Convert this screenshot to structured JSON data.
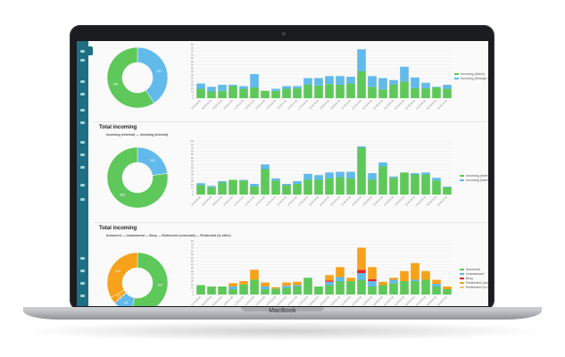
{
  "device": {
    "brand_label": "MacBook"
  },
  "sections": [
    {
      "title": "",
      "filter_line": "",
      "donut": {
        "labels": [
          "237",
          "345"
        ],
        "values": [
          237,
          345
        ],
        "colors": [
          "#62baea",
          "#5ec85a"
        ]
      },
      "chart": {
        "type": "bar",
        "ylim": [
          0,
          80
        ],
        "yticks": [
          "80",
          "75",
          "70",
          "65",
          "60",
          "55",
          "50",
          "45",
          "40",
          "35",
          "30",
          "25",
          "20",
          "15",
          "10",
          "5",
          "0"
        ],
        "categories": [
          "07:00-08:00",
          "08:00-09:00",
          "09:00-10:00",
          "10:00-11:00",
          "11:00-12:00",
          "12:00-13:00",
          "13:00-14:00",
          "14:00-15:00",
          "15:00-16:00",
          "16:00-17:00",
          "17:00-18:00",
          "18:00-19:00",
          "19:00-20:00",
          "20:00-21:00",
          "21:00-22:00",
          "22:00-23:00",
          "23:00-00:00",
          "00:00-01:00",
          "01:00-02:00",
          "02:00-03:00",
          "03:00-04:00",
          "04:00-05:00",
          "05:00-06:00",
          "06:00-07:00"
        ],
        "series": [
          {
            "name": "Incoming (direct)",
            "color": "#5ec85a",
            "values": [
              14,
              10,
              11,
              18,
              14,
              16,
              11,
              11,
              14,
              15,
              20,
              19,
              21,
              20,
              22,
              40,
              17,
              13,
              20,
              25,
              15,
              15,
              16,
              14
            ]
          },
          {
            "name": "Incoming (through other)",
            "color": "#62baea",
            "values": [
              8,
              7,
              9,
              2,
              4,
              20,
              0,
              3,
              4,
              3,
              10,
              11,
              12,
              13,
              10,
              33,
              16,
              17,
              7,
              22,
              16,
              8,
              1,
              6
            ]
          }
        ],
        "legend": [
          "Incoming (direct)",
          "Incoming (through other)"
        ]
      }
    },
    {
      "title": "Total incoming",
      "filter_line": "Incoming (external) — Incoming (internal)",
      "donut": {
        "labels": [
          "113",
          "383"
        ],
        "values": [
          113,
          383
        ],
        "colors": [
          "#62baea",
          "#5ec85a"
        ]
      },
      "chart": {
        "type": "bar",
        "ylim": [
          0,
          80
        ],
        "yticks": [
          "80",
          "75",
          "70",
          "65",
          "60",
          "55",
          "50",
          "45",
          "40",
          "35",
          "30",
          "25",
          "20",
          "15",
          "10",
          "5",
          "0"
        ],
        "categories": [
          "07:00-08:00",
          "08:00-09:00",
          "09:00-10:00",
          "10:00-11:00",
          "11:00-12:00",
          "12:00-13:00",
          "13:00-14:00",
          "14:00-15:00",
          "15:00-16:00",
          "16:00-17:00",
          "17:00-18:00",
          "18:00-19:00",
          "19:00-20:00",
          "20:00-21:00",
          "21:00-22:00",
          "22:00-23:00",
          "23:00-00:00",
          "00:00-01:00",
          "01:00-02:00",
          "02:00-03:00",
          "03:00-04:00",
          "04:00-05:00",
          "05:00-06:00",
          "06:00-07:00"
        ],
        "series": [
          {
            "name": "Incoming (external)",
            "color": "#5ec85a",
            "values": [
              14,
              11,
              18,
              22,
              21,
              12,
              38,
              21,
              14,
              16,
              22,
              22,
              24,
              26,
              24,
              70,
              22,
              42,
              25,
              33,
              30,
              30,
              21,
              11
            ]
          },
          {
            "name": "Incoming (internal)",
            "color": "#62baea",
            "values": [
              3,
              2,
              2,
              0,
              1,
              4,
              7,
              3,
              2,
              4,
              9,
              7,
              9,
              8,
              10,
              2,
              10,
              6,
              2,
              0,
              2,
              3,
              4,
              1
            ]
          }
        ],
        "legend": [
          "Incoming (external)",
          "Incoming (internal)"
        ]
      }
    },
    {
      "title": "Total incoming",
      "filter_line": "Answered — Unanswered — Busy — Redirected (voicemail) — Redirected (to other)",
      "donut": {
        "labels": [
          "437",
          "84",
          "3",
          "27",
          "271"
        ],
        "values": [
          437,
          84,
          3,
          27,
          271
        ],
        "colors": [
          "#5ec85a",
          "#62baea",
          "#e8242c",
          "#f7a21b",
          "#f7a21b"
        ]
      },
      "chart": {
        "type": "bar",
        "ylim": [
          0,
          80
        ],
        "yticks": [
          "80",
          "75",
          "70",
          "65",
          "60",
          "55",
          "50",
          "45",
          "40",
          "35",
          "30",
          "25",
          "20",
          "15",
          "10",
          "5",
          "0"
        ],
        "categories": [
          "07:00-08:00",
          "08:00-09:00",
          "09:00-10:00",
          "10:00-11:00",
          "11:00-12:00",
          "12:00-13:00",
          "13:00-14:00",
          "14:00-15:00",
          "15:00-16:00",
          "16:00-17:00",
          "17:00-18:00",
          "18:00-19:00",
          "19:00-20:00",
          "20:00-21:00",
          "21:00-22:00",
          "22:00-23:00",
          "23:00-00:00",
          "00:00-01:00",
          "01:00-02:00",
          "02:00-03:00",
          "03:00-04:00",
          "04:00-05:00",
          "05:00-06:00",
          "06:00-07:00"
        ],
        "series": [
          {
            "name": "Answered",
            "color": "#5ec85a",
            "values": [
              14,
              12,
              12,
              8,
              15,
              22,
              8,
              9,
              10,
              12,
              25,
              12,
              14,
              20,
              20,
              22,
              12,
              14,
              17,
              20,
              20,
              22,
              12,
              8
            ]
          },
          {
            "name": "Unanswered",
            "color": "#62baea",
            "values": [
              0,
              0,
              0,
              4,
              0,
              0,
              4,
              0,
              3,
              2,
              0,
              0,
              5,
              6,
              0,
              10,
              8,
              0,
              5,
              0,
              2,
              0,
              4,
              0
            ]
          },
          {
            "name": "Busy",
            "color": "#e8242c",
            "values": [
              0,
              0,
              0,
              0,
              0,
              0,
              0,
              0,
              0,
              0,
              0,
              0,
              2,
              0,
              0,
              5,
              3,
              0,
              0,
              0,
              0,
              0,
              0,
              0
            ]
          },
          {
            "name": "Redirected (voicemail)",
            "color": "#f7a21b",
            "values": [
              0,
              0,
              0,
              5,
              5,
              15,
              6,
              2,
              5,
              5,
              0,
              0,
              8,
              15,
              5,
              33,
              18,
              5,
              3,
              15,
              25,
              13,
              6,
              4
            ]
          },
          {
            "name": "Redirected (to other)",
            "color": "#f7c36b",
            "values": [
              0,
              0,
              0,
              0,
              0,
              0,
              0,
              0,
              0,
              0,
              0,
              0,
              0,
              0,
              0,
              0,
              0,
              0,
              0,
              0,
              0,
              0,
              0,
              0
            ]
          }
        ],
        "legend": [
          "Answered",
          "Unanswered",
          "Busy",
          "Redirected (voicemail)",
          "Redirected (to other)"
        ]
      }
    }
  ],
  "chart_data": [
    {
      "type": "bar",
      "categories": [
        "07:00-08:00",
        "08:00-09:00",
        "09:00-10:00",
        "10:00-11:00",
        "11:00-12:00",
        "12:00-13:00",
        "13:00-14:00",
        "14:00-15:00",
        "15:00-16:00",
        "16:00-17:00",
        "17:00-18:00",
        "18:00-19:00",
        "19:00-20:00",
        "20:00-21:00",
        "21:00-22:00",
        "22:00-23:00",
        "23:00-00:00",
        "00:00-01:00",
        "01:00-02:00",
        "02:00-03:00",
        "03:00-04:00",
        "04:00-05:00",
        "05:00-06:00",
        "06:00-07:00"
      ],
      "series": [
        {
          "name": "Incoming (direct)",
          "values": [
            14,
            10,
            11,
            18,
            14,
            16,
            11,
            11,
            14,
            15,
            20,
            19,
            21,
            20,
            22,
            40,
            17,
            13,
            20,
            25,
            15,
            15,
            16,
            14
          ]
        },
        {
          "name": "Incoming (through other)",
          "values": [
            8,
            7,
            9,
            2,
            4,
            20,
            0,
            3,
            4,
            3,
            10,
            11,
            12,
            13,
            10,
            33,
            16,
            17,
            7,
            22,
            16,
            8,
            1,
            6
          ]
        }
      ],
      "ylim": [
        0,
        80
      ]
    },
    {
      "type": "bar",
      "categories": [
        "07:00-08:00",
        "08:00-09:00",
        "09:00-10:00",
        "10:00-11:00",
        "11:00-12:00",
        "12:00-13:00",
        "13:00-14:00",
        "14:00-15:00",
        "15:00-16:00",
        "16:00-17:00",
        "17:00-18:00",
        "18:00-19:00",
        "19:00-20:00",
        "20:00-21:00",
        "21:00-22:00",
        "22:00-23:00",
        "23:00-00:00",
        "00:00-01:00",
        "01:00-02:00",
        "02:00-03:00",
        "03:00-04:00",
        "04:00-05:00",
        "05:00-06:00",
        "06:00-07:00"
      ],
      "series": [
        {
          "name": "Incoming (external)",
          "values": [
            14,
            11,
            18,
            22,
            21,
            12,
            38,
            21,
            14,
            16,
            22,
            22,
            24,
            26,
            24,
            70,
            22,
            42,
            25,
            33,
            30,
            30,
            21,
            11
          ]
        },
        {
          "name": "Incoming (internal)",
          "values": [
            3,
            2,
            2,
            0,
            1,
            4,
            7,
            3,
            2,
            4,
            9,
            7,
            9,
            8,
            10,
            2,
            10,
            6,
            2,
            0,
            2,
            3,
            4,
            1
          ]
        }
      ],
      "ylim": [
        0,
        80
      ]
    },
    {
      "type": "bar",
      "categories": [
        "07:00-08:00",
        "08:00-09:00",
        "09:00-10:00",
        "10:00-11:00",
        "11:00-12:00",
        "12:00-13:00",
        "13:00-14:00",
        "14:00-15:00",
        "15:00-16:00",
        "16:00-17:00",
        "17:00-18:00",
        "18:00-19:00",
        "19:00-20:00",
        "20:00-21:00",
        "21:00-22:00",
        "22:00-23:00",
        "23:00-00:00",
        "00:00-01:00",
        "01:00-02:00",
        "02:00-03:00",
        "03:00-04:00",
        "04:00-05:00",
        "05:00-06:00",
        "06:00-07:00"
      ],
      "series": [
        {
          "name": "Answered",
          "values": [
            14,
            12,
            12,
            8,
            15,
            22,
            8,
            9,
            10,
            12,
            25,
            12,
            14,
            20,
            20,
            22,
            12,
            14,
            17,
            20,
            20,
            22,
            12,
            8
          ]
        },
        {
          "name": "Unanswered",
          "values": [
            0,
            0,
            0,
            4,
            0,
            0,
            4,
            0,
            3,
            2,
            0,
            0,
            5,
            6,
            0,
            10,
            8,
            0,
            5,
            0,
            2,
            0,
            4,
            0
          ]
        },
        {
          "name": "Busy",
          "values": [
            0,
            0,
            0,
            0,
            0,
            0,
            0,
            0,
            0,
            0,
            0,
            0,
            2,
            0,
            0,
            5,
            3,
            0,
            0,
            0,
            0,
            0,
            0,
            0
          ]
        },
        {
          "name": "Redirected (voicemail)",
          "values": [
            0,
            0,
            0,
            5,
            5,
            15,
            6,
            2,
            5,
            5,
            0,
            0,
            8,
            15,
            5,
            33,
            18,
            5,
            3,
            15,
            25,
            13,
            6,
            4
          ]
        },
        {
          "name": "Redirected (to other)",
          "values": [
            0,
            0,
            0,
            0,
            0,
            0,
            0,
            0,
            0,
            0,
            0,
            0,
            0,
            0,
            0,
            0,
            0,
            0,
            0,
            0,
            0,
            0,
            0,
            0
          ]
        }
      ],
      "ylim": [
        0,
        80
      ]
    }
  ]
}
